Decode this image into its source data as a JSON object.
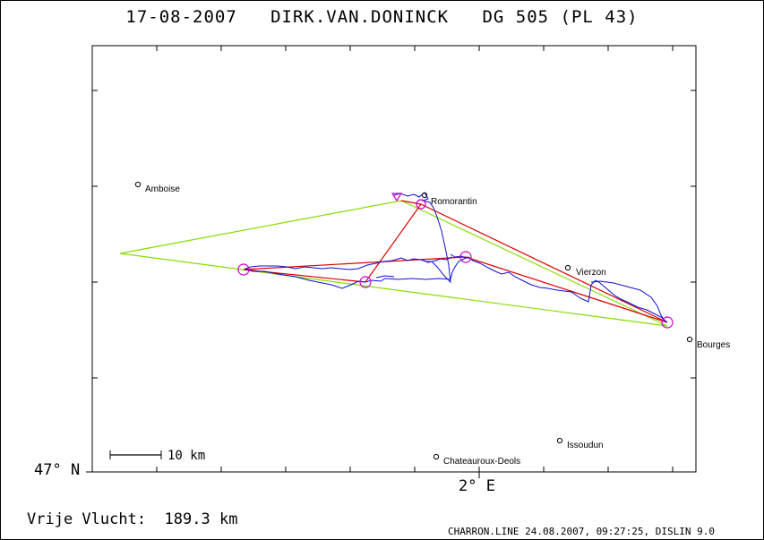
{
  "header": {
    "date": "17-08-2007",
    "pilot": "DIRK.VAN.DONINCK",
    "glider": "DG 505 (PL 43)"
  },
  "axes": {
    "lat_label": "47° N",
    "lon_label": "2° E"
  },
  "scale_bar": {
    "label": "10 km"
  },
  "flight": {
    "label": "Vrije Vlucht:",
    "distance": "189.3 km"
  },
  "footer": "CHARRON.LINE 24.08.2007, 09:27:25, DISLIN 9.0",
  "cities": [
    {
      "name": "Amboise"
    },
    {
      "name": "Romorantin"
    },
    {
      "name": "Vierzon"
    },
    {
      "name": "Bourges"
    },
    {
      "name": "Issoudun"
    },
    {
      "name": "Chateauroux-Deols"
    }
  ],
  "colors": {
    "track": "#1010d0",
    "triangle": "#88dd00",
    "route": "#dd0000",
    "turnpoint": "#cc00cc"
  }
}
